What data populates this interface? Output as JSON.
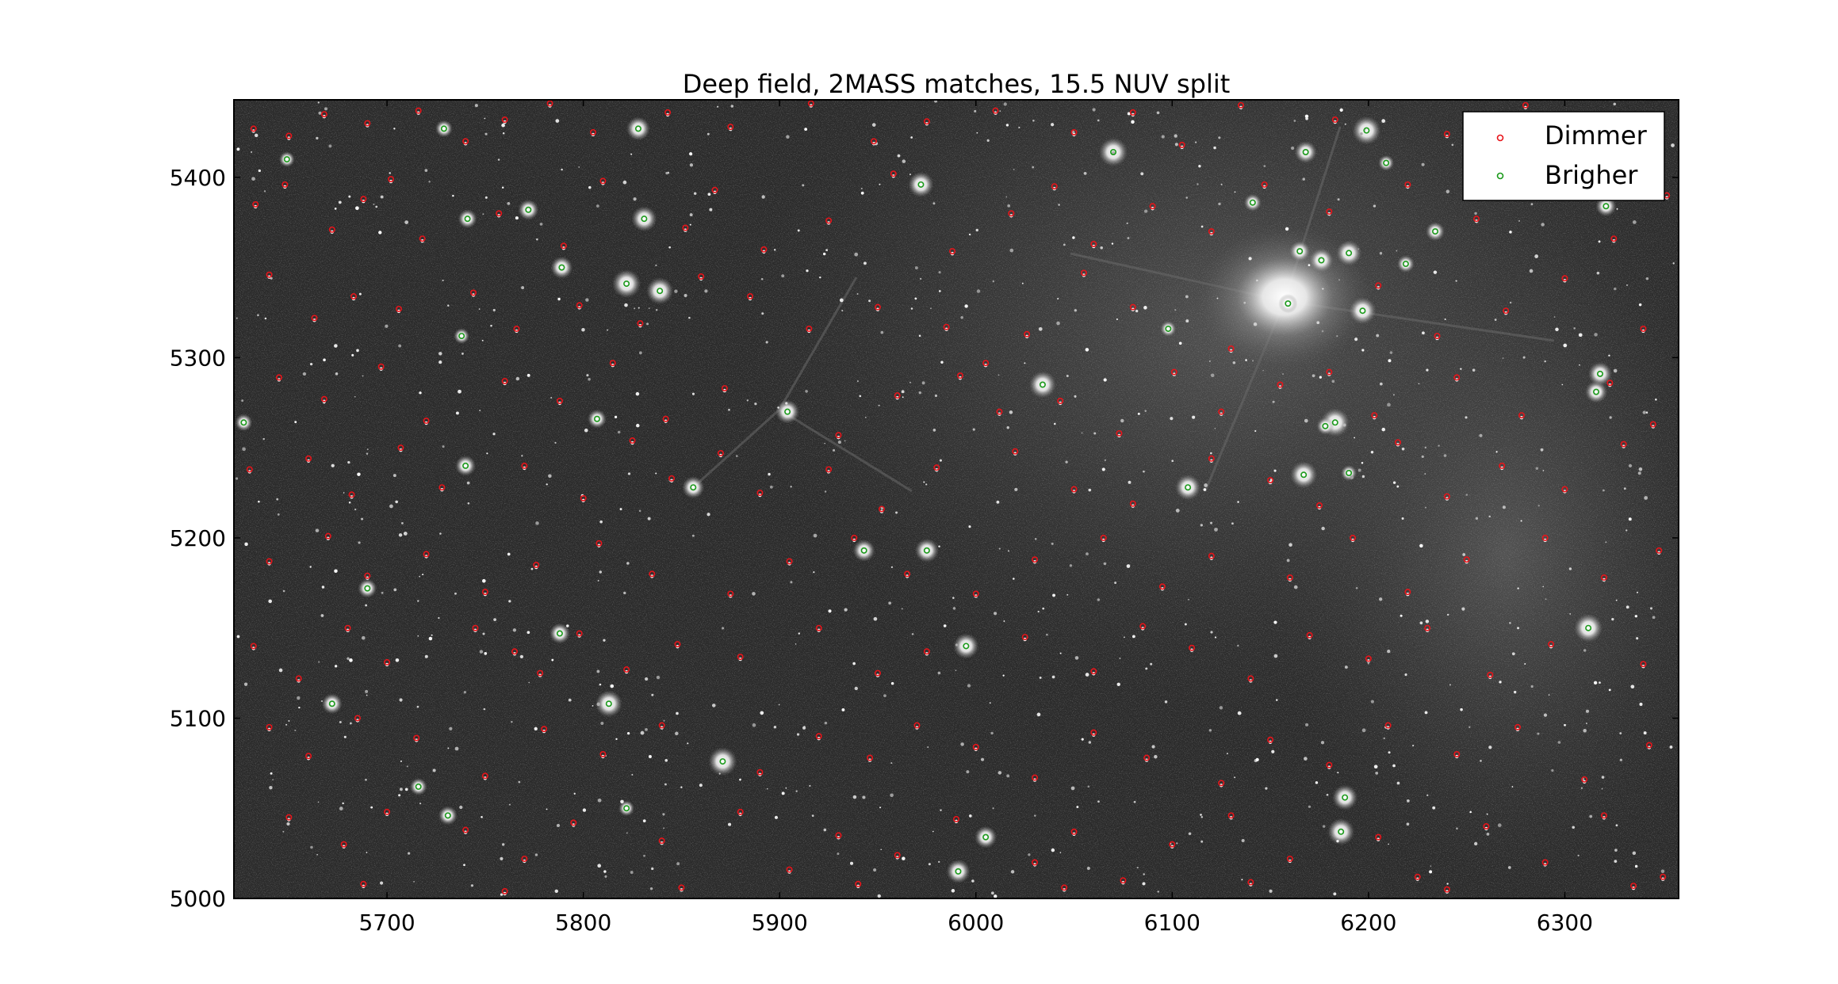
{
  "chart_data": {
    "type": "scatter",
    "title": "Deep field, 2MASS matches, 15.5 NUV split",
    "xlabel": "",
    "ylabel": "",
    "xlim": [
      5622,
      6358
    ],
    "ylim": [
      5000,
      5443
    ],
    "xticks": [
      5700,
      5800,
      5900,
      6000,
      6100,
      6200,
      6300
    ],
    "yticks": [
      5000,
      5100,
      5200,
      5300,
      5400
    ],
    "grid": false,
    "legend_position": "top-right",
    "background": "grayscale deep-field sky image",
    "series": [
      {
        "name": "Dimmer",
        "color": "#e8141a",
        "marker": "open-circle",
        "points": [
          [
            5632,
            5427
          ],
          [
            5650,
            5423
          ],
          [
            5668,
            5435
          ],
          [
            5690,
            5430
          ],
          [
            5716,
            5437
          ],
          [
            5740,
            5420
          ],
          [
            5760,
            5432
          ],
          [
            5783,
            5441
          ],
          [
            5805,
            5425
          ],
          [
            5843,
            5436
          ],
          [
            5875,
            5428
          ],
          [
            5916,
            5441
          ],
          [
            5948,
            5420
          ],
          [
            5975,
            5431
          ],
          [
            6010,
            5437
          ],
          [
            6050,
            5425
          ],
          [
            6080,
            5436
          ],
          [
            6105,
            5418
          ],
          [
            6135,
            5440
          ],
          [
            6183,
            5432
          ],
          [
            6240,
            5424
          ],
          [
            6280,
            5440
          ],
          [
            6330,
            5430
          ],
          [
            5633,
            5385
          ],
          [
            5648,
            5396
          ],
          [
            5672,
            5371
          ],
          [
            5688,
            5388
          ],
          [
            5702,
            5399
          ],
          [
            5718,
            5366
          ],
          [
            5757,
            5380
          ],
          [
            5790,
            5362
          ],
          [
            5810,
            5398
          ],
          [
            5852,
            5372
          ],
          [
            5867,
            5393
          ],
          [
            5892,
            5360
          ],
          [
            5925,
            5376
          ],
          [
            5958,
            5402
          ],
          [
            5988,
            5359
          ],
          [
            6018,
            5380
          ],
          [
            6040,
            5395
          ],
          [
            6060,
            5363
          ],
          [
            6090,
            5384
          ],
          [
            6120,
            5370
          ],
          [
            6147,
            5396
          ],
          [
            6180,
            5381
          ],
          [
            6220,
            5396
          ],
          [
            6255,
            5377
          ],
          [
            6290,
            5399
          ],
          [
            6325,
            5366
          ],
          [
            6352,
            5390
          ],
          [
            5640,
            5346
          ],
          [
            5663,
            5322
          ],
          [
            5683,
            5334
          ],
          [
            5706,
            5327
          ],
          [
            5744,
            5336
          ],
          [
            5766,
            5316
          ],
          [
            5798,
            5329
          ],
          [
            5829,
            5319
          ],
          [
            5860,
            5345
          ],
          [
            5885,
            5334
          ],
          [
            5915,
            5316
          ],
          [
            5950,
            5328
          ],
          [
            5985,
            5317
          ],
          [
            6005,
            5297
          ],
          [
            6026,
            5313
          ],
          [
            6055,
            5347
          ],
          [
            6080,
            5328
          ],
          [
            6130,
            5305
          ],
          [
            6180,
            5292
          ],
          [
            6205,
            5340
          ],
          [
            6235,
            5312
          ],
          [
            6270,
            5326
          ],
          [
            6300,
            5344
          ],
          [
            6340,
            5316
          ],
          [
            5645,
            5289
          ],
          [
            5668,
            5277
          ],
          [
            5697,
            5295
          ],
          [
            5720,
            5265
          ],
          [
            5760,
            5287
          ],
          [
            5788,
            5276
          ],
          [
            5815,
            5297
          ],
          [
            5842,
            5266
          ],
          [
            5872,
            5283
          ],
          [
            5930,
            5257
          ],
          [
            5960,
            5279
          ],
          [
            5992,
            5290
          ],
          [
            6012,
            5270
          ],
          [
            6043,
            5276
          ],
          [
            6073,
            5258
          ],
          [
            6101,
            5292
          ],
          [
            6125,
            5270
          ],
          [
            6155,
            5285
          ],
          [
            6203,
            5268
          ],
          [
            6245,
            5289
          ],
          [
            6278,
            5268
          ],
          [
            6323,
            5286
          ],
          [
            6345,
            5263
          ],
          [
            5630,
            5238
          ],
          [
            5660,
            5244
          ],
          [
            5682,
            5224
          ],
          [
            5707,
            5250
          ],
          [
            5728,
            5228
          ],
          [
            5770,
            5240
          ],
          [
            5800,
            5222
          ],
          [
            5825,
            5254
          ],
          [
            5845,
            5233
          ],
          [
            5870,
            5247
          ],
          [
            5890,
            5225
          ],
          [
            5925,
            5238
          ],
          [
            5952,
            5216
          ],
          [
            5980,
            5239
          ],
          [
            6020,
            5248
          ],
          [
            6050,
            5227
          ],
          [
            6080,
            5219
          ],
          [
            6120,
            5244
          ],
          [
            6150,
            5232
          ],
          [
            6175,
            5218
          ],
          [
            6215,
            5253
          ],
          [
            6240,
            5223
          ],
          [
            6268,
            5240
          ],
          [
            6300,
            5227
          ],
          [
            6330,
            5252
          ],
          [
            5640,
            5187
          ],
          [
            5670,
            5201
          ],
          [
            5690,
            5179
          ],
          [
            5720,
            5191
          ],
          [
            5750,
            5170
          ],
          [
            5776,
            5185
          ],
          [
            5808,
            5197
          ],
          [
            5835,
            5180
          ],
          [
            5875,
            5169
          ],
          [
            5905,
            5187
          ],
          [
            5938,
            5200
          ],
          [
            5965,
            5180
          ],
          [
            6000,
            5169
          ],
          [
            6030,
            5188
          ],
          [
            6065,
            5200
          ],
          [
            6095,
            5173
          ],
          [
            6120,
            5190
          ],
          [
            6160,
            5178
          ],
          [
            6192,
            5200
          ],
          [
            6220,
            5170
          ],
          [
            6250,
            5188
          ],
          [
            6290,
            5200
          ],
          [
            6320,
            5178
          ],
          [
            6348,
            5193
          ],
          [
            5632,
            5140
          ],
          [
            5655,
            5122
          ],
          [
            5680,
            5150
          ],
          [
            5700,
            5131
          ],
          [
            5745,
            5150
          ],
          [
            5765,
            5137
          ],
          [
            5778,
            5125
          ],
          [
            5798,
            5147
          ],
          [
            5822,
            5127
          ],
          [
            5848,
            5141
          ],
          [
            5880,
            5134
          ],
          [
            5920,
            5150
          ],
          [
            5950,
            5125
          ],
          [
            5975,
            5137
          ],
          [
            6025,
            5145
          ],
          [
            6060,
            5126
          ],
          [
            6085,
            5151
          ],
          [
            6110,
            5139
          ],
          [
            6140,
            5122
          ],
          [
            6170,
            5146
          ],
          [
            6200,
            5133
          ],
          [
            6230,
            5150
          ],
          [
            6262,
            5124
          ],
          [
            6293,
            5141
          ],
          [
            6340,
            5130
          ],
          [
            5640,
            5095
          ],
          [
            5660,
            5079
          ],
          [
            5685,
            5100
          ],
          [
            5715,
            5089
          ],
          [
            5750,
            5068
          ],
          [
            5780,
            5094
          ],
          [
            5810,
            5080
          ],
          [
            5840,
            5096
          ],
          [
            5890,
            5070
          ],
          [
            5920,
            5090
          ],
          [
            5946,
            5078
          ],
          [
            5970,
            5096
          ],
          [
            6000,
            5084
          ],
          [
            6030,
            5067
          ],
          [
            6060,
            5092
          ],
          [
            6087,
            5078
          ],
          [
            6125,
            5064
          ],
          [
            6150,
            5088
          ],
          [
            6180,
            5074
          ],
          [
            6210,
            5096
          ],
          [
            6245,
            5080
          ],
          [
            6276,
            5095
          ],
          [
            6310,
            5066
          ],
          [
            6343,
            5085
          ],
          [
            5650,
            5045
          ],
          [
            5678,
            5030
          ],
          [
            5700,
            5048
          ],
          [
            5740,
            5038
          ],
          [
            5770,
            5022
          ],
          [
            5795,
            5042
          ],
          [
            5840,
            5032
          ],
          [
            5880,
            5048
          ],
          [
            5905,
            5016
          ],
          [
            5930,
            5035
          ],
          [
            5960,
            5024
          ],
          [
            5990,
            5044
          ],
          [
            6030,
            5020
          ],
          [
            6050,
            5037
          ],
          [
            6075,
            5010
          ],
          [
            6100,
            5030
          ],
          [
            6130,
            5046
          ],
          [
            6160,
            5022
          ],
          [
            6205,
            5034
          ],
          [
            6225,
            5012
          ],
          [
            6260,
            5040
          ],
          [
            6290,
            5020
          ],
          [
            6320,
            5046
          ],
          [
            6350,
            5012
          ],
          [
            5688,
            5008
          ],
          [
            5760,
            5004
          ],
          [
            5850,
            5006
          ],
          [
            5940,
            5008
          ],
          [
            6045,
            5006
          ],
          [
            6140,
            5009
          ],
          [
            6240,
            5005
          ],
          [
            6335,
            5007
          ]
        ]
      },
      {
        "name": "Brigher",
        "color": "#1a9a1a",
        "marker": "open-circle",
        "points": [
          [
            5649,
            5410
          ],
          [
            5729,
            5427
          ],
          [
            5741,
            5377
          ],
          [
            5772,
            5382
          ],
          [
            5789,
            5350
          ],
          [
            5828,
            5427
          ],
          [
            5831,
            5377
          ],
          [
            5839,
            5337
          ],
          [
            5822,
            5341
          ],
          [
            5738,
            5312
          ],
          [
            5627,
            5264
          ],
          [
            5807,
            5266
          ],
          [
            5740,
            5240
          ],
          [
            5856,
            5228
          ],
          [
            5904,
            5270
          ],
          [
            5972,
            5396
          ],
          [
            6034,
            5285
          ],
          [
            6070,
            5414
          ],
          [
            6098,
            5316
          ],
          [
            6141,
            5386
          ],
          [
            6159,
            5330
          ],
          [
            6165,
            5359
          ],
          [
            6168,
            5414
          ],
          [
            6176,
            5354
          ],
          [
            6190,
            5358
          ],
          [
            6197,
            5326
          ],
          [
            6199,
            5426
          ],
          [
            6209,
            5408
          ],
          [
            6219,
            5352
          ],
          [
            6234,
            5370
          ],
          [
            6321,
            5384
          ],
          [
            6316,
            5281
          ],
          [
            6318,
            5291
          ],
          [
            6108,
            5228
          ],
          [
            6167,
            5235
          ],
          [
            6183,
            5264
          ],
          [
            6190,
            5236
          ],
          [
            6178,
            5262
          ],
          [
            5690,
            5172
          ],
          [
            5788,
            5147
          ],
          [
            5943,
            5193
          ],
          [
            5975,
            5193
          ],
          [
            5995,
            5140
          ],
          [
            5813,
            5108
          ],
          [
            5871,
            5076
          ],
          [
            5822,
            5050
          ],
          [
            5716,
            5062
          ],
          [
            5731,
            5046
          ],
          [
            5672,
            5108
          ],
          [
            6005,
            5034
          ],
          [
            5991,
            5015
          ],
          [
            6188,
            5056
          ],
          [
            6186,
            5037
          ],
          [
            6312,
            5150
          ]
        ]
      }
    ]
  }
}
